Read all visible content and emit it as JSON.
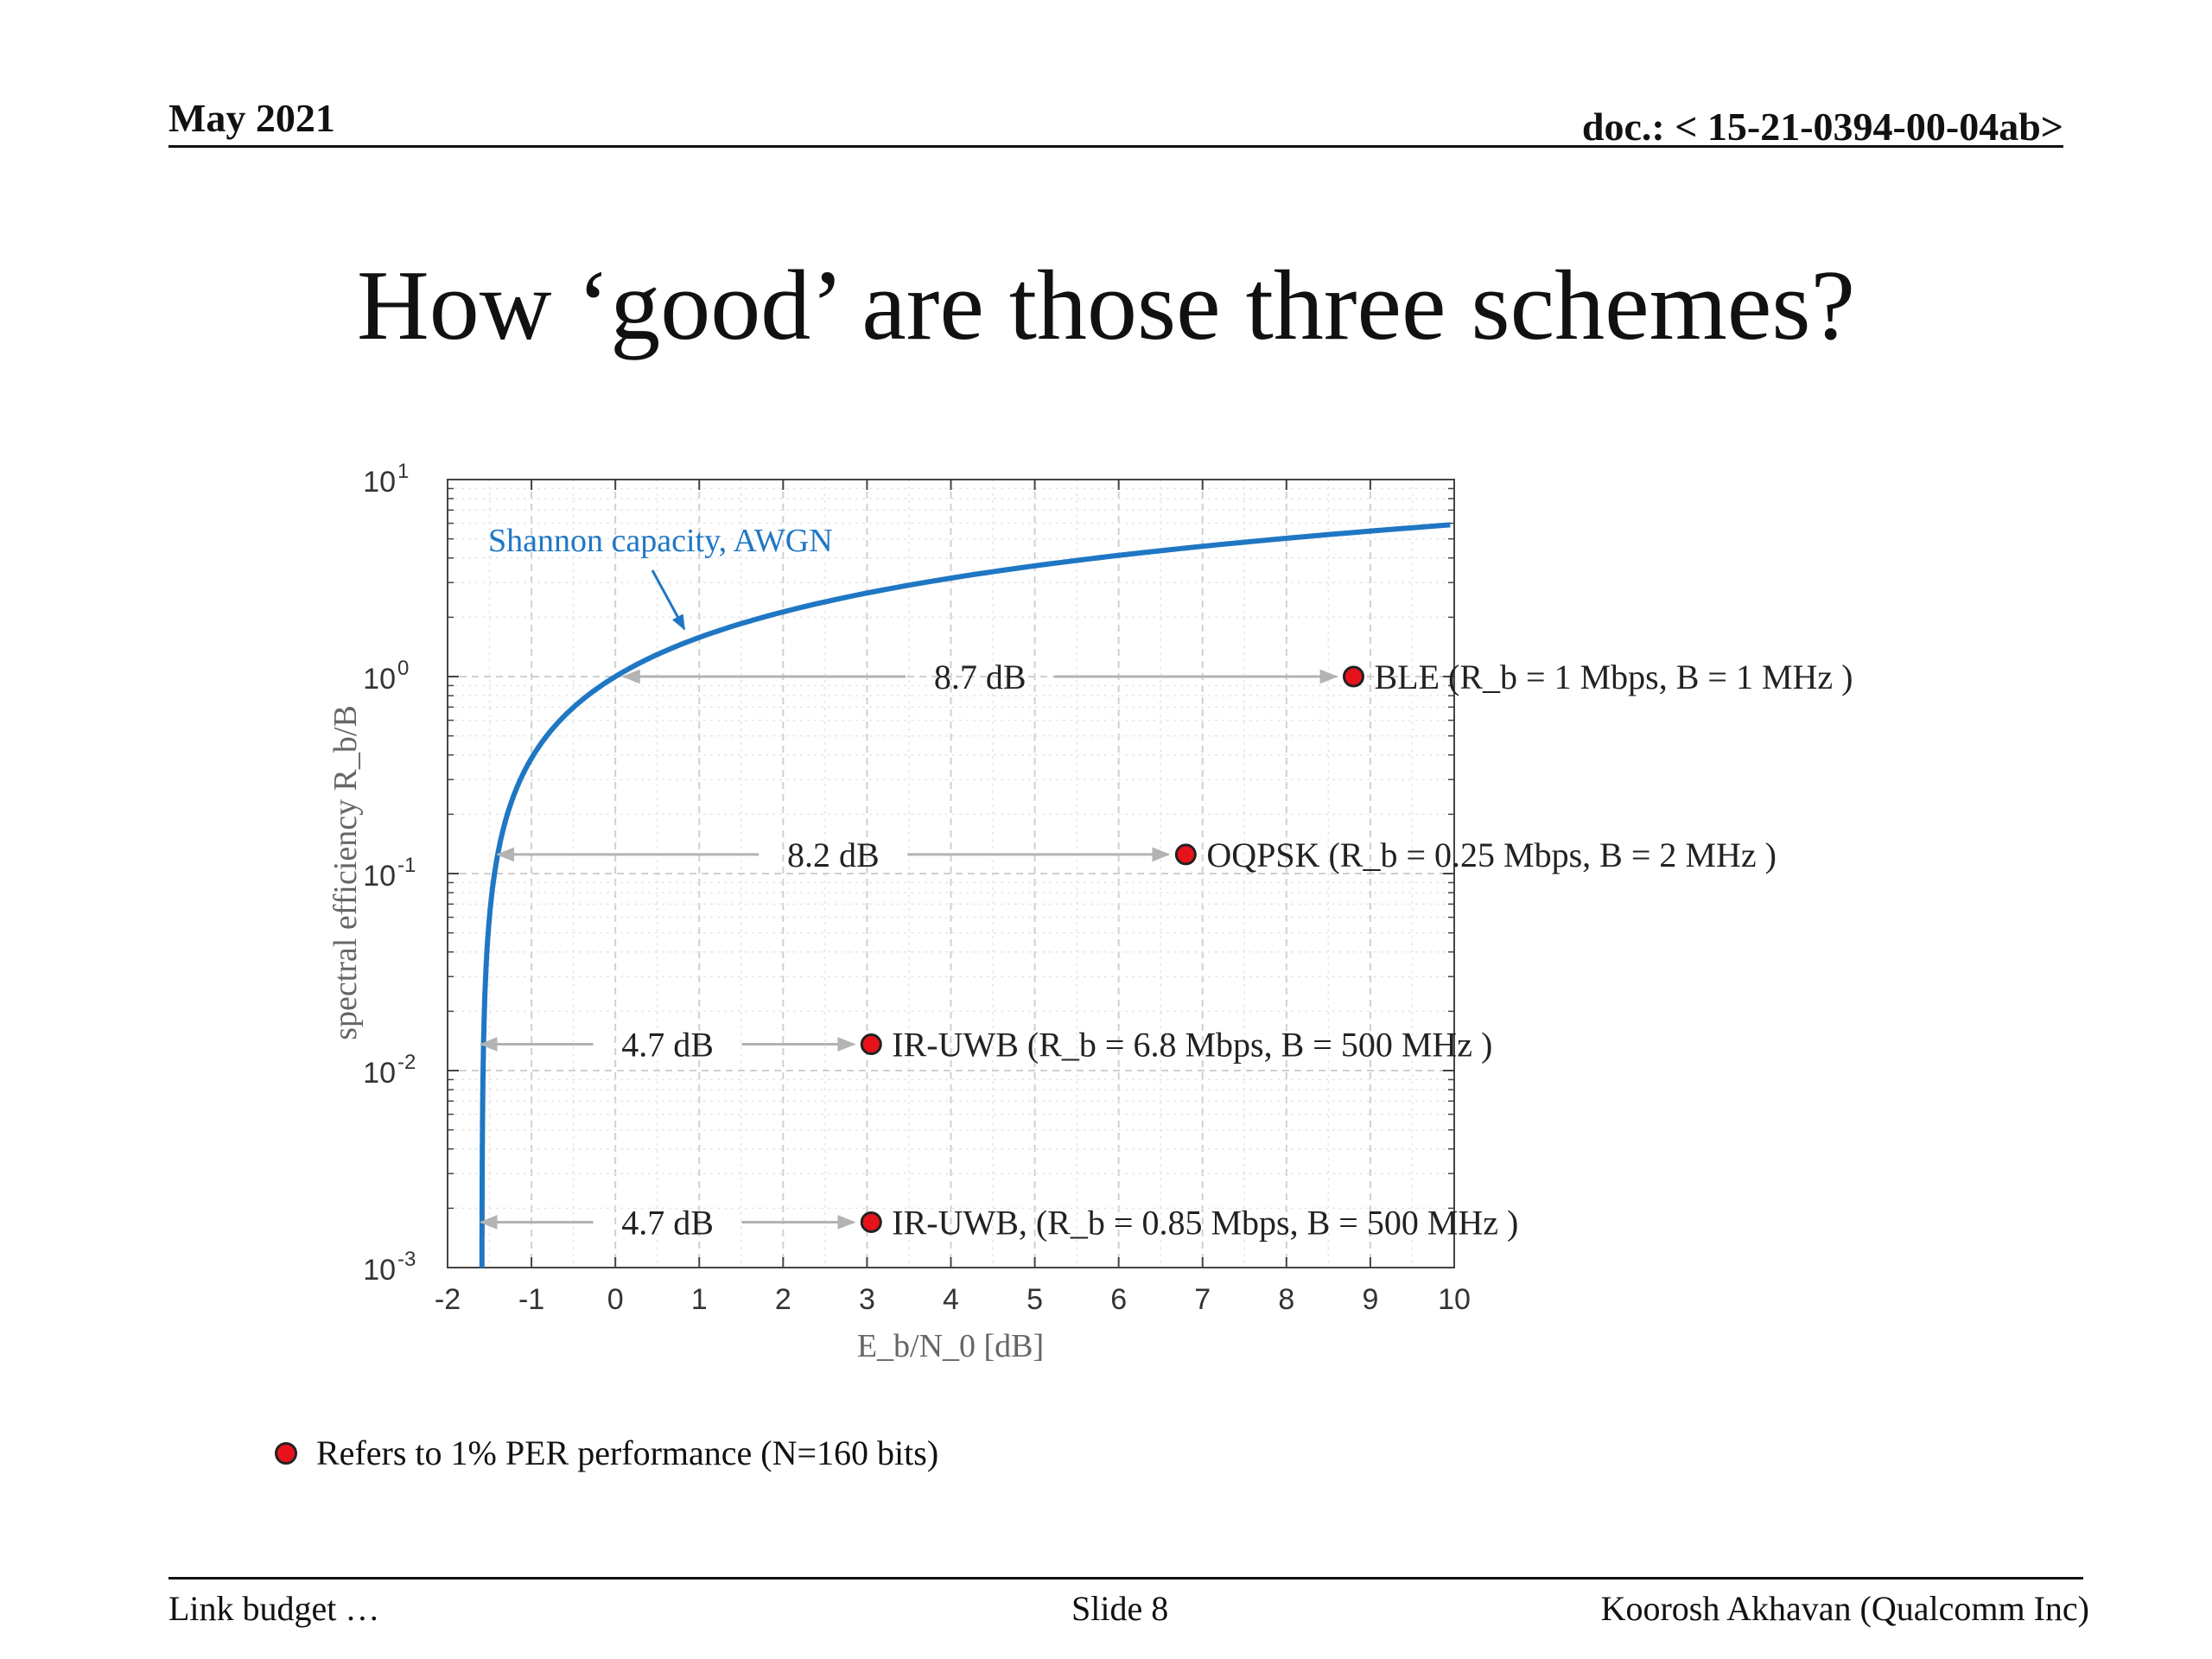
{
  "header": {
    "date": "May 2021",
    "doc": "doc.: < 15-21-0394-00-04ab>"
  },
  "title": "How ‘good’ are those three schemes?",
  "chart_data": {
    "type": "line",
    "x_scale": "linear",
    "y_scale": "log",
    "xlim": [
      -2,
      10
    ],
    "ylim": [
      0.001,
      10
    ],
    "x_ticks": [
      -2,
      -1,
      0,
      1,
      2,
      3,
      4,
      5,
      6,
      7,
      8,
      9,
      10
    ],
    "y_ticks": [
      {
        "value": 10,
        "base": "10",
        "exp": "1"
      },
      {
        "value": 1,
        "base": "10",
        "exp": "0"
      },
      {
        "value": 0.1,
        "base": "10",
        "exp": "-1"
      },
      {
        "value": 0.01,
        "base": "10",
        "exp": "-2"
      },
      {
        "value": 0.001,
        "base": "10",
        "exp": "-3"
      }
    ],
    "grid": true,
    "xlabel": "E_b/N_0 [dB]",
    "ylabel": "spectral efficiency R_b/B",
    "curve": {
      "name": "Shannon capacity, AWGN",
      "color": "#1f77c4",
      "formula": "Eb/N0 = (2^eta - 1)/eta",
      "x_range_dB": [
        -1.59,
        10
      ],
      "eta_at_x10": 5.9
    },
    "points": [
      {
        "label": "BLE (R_b = 1 Mbps,  B = 1 MHz )",
        "x": 8.8,
        "y": 1.0,
        "gap_label": "8.7 dB",
        "gap_from_x": 0.1
      },
      {
        "label": "OQPSK (R_b = 0.25 Mbps,  B = 2 MHz )",
        "x": 6.8,
        "y": 0.125,
        "gap_label": "8.2 dB",
        "gap_from_x": -1.4
      },
      {
        "label": "IR-UWB (R_b = 6.8 Mbps,  B = 500 MHz )",
        "x": 3.05,
        "y": 0.0136,
        "gap_label": "4.7 dB",
        "gap_from_x": -1.6
      },
      {
        "label": "IR-UWB, (R_b = 0.85 Mbps,  B = 500 MHz )",
        "x": 3.05,
        "y": 0.0017,
        "gap_label": "4.7 dB",
        "gap_from_x": -1.6
      }
    ],
    "point_color": "#e8131a",
    "annotation": "Shannon capacity, AWGN"
  },
  "footnote": "Refers to 1% PER performance (N=160 bits)",
  "footer": {
    "left": "Link budget …",
    "center": "Slide 8",
    "right": "Koorosh Akhavan (Qualcomm Inc)"
  }
}
